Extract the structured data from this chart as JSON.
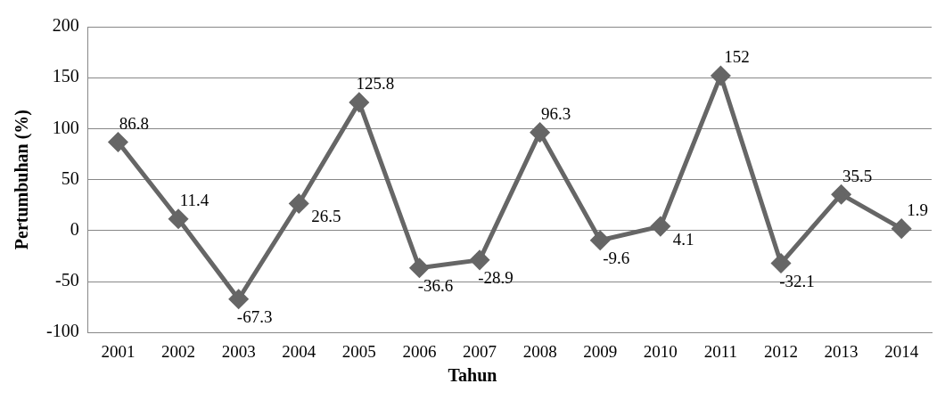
{
  "chart_data": {
    "type": "line",
    "xlabel": "Tahun",
    "ylabel": "Pertumbuhan (%)",
    "categories": [
      "2001",
      "2002",
      "2003",
      "2004",
      "2005",
      "2006",
      "2007",
      "2008",
      "2009",
      "2010",
      "2011",
      "2012",
      "2013",
      "2014"
    ],
    "series": [
      {
        "color": "#666666",
        "values": [
          86.8,
          11.4,
          -67.3,
          26.5,
          125.8,
          -36.6,
          -28.9,
          96.3,
          -9.6,
          4.1,
          152,
          -32.1,
          35.5,
          1.9
        ]
      }
    ],
    "ylim": [
      -100,
      200
    ],
    "yticks": [
      -100,
      -50,
      0,
      50,
      100,
      150,
      200
    ],
    "grid": "y",
    "marker": "diamond",
    "line_style": "solid",
    "data_labels": true,
    "legend": false
  }
}
